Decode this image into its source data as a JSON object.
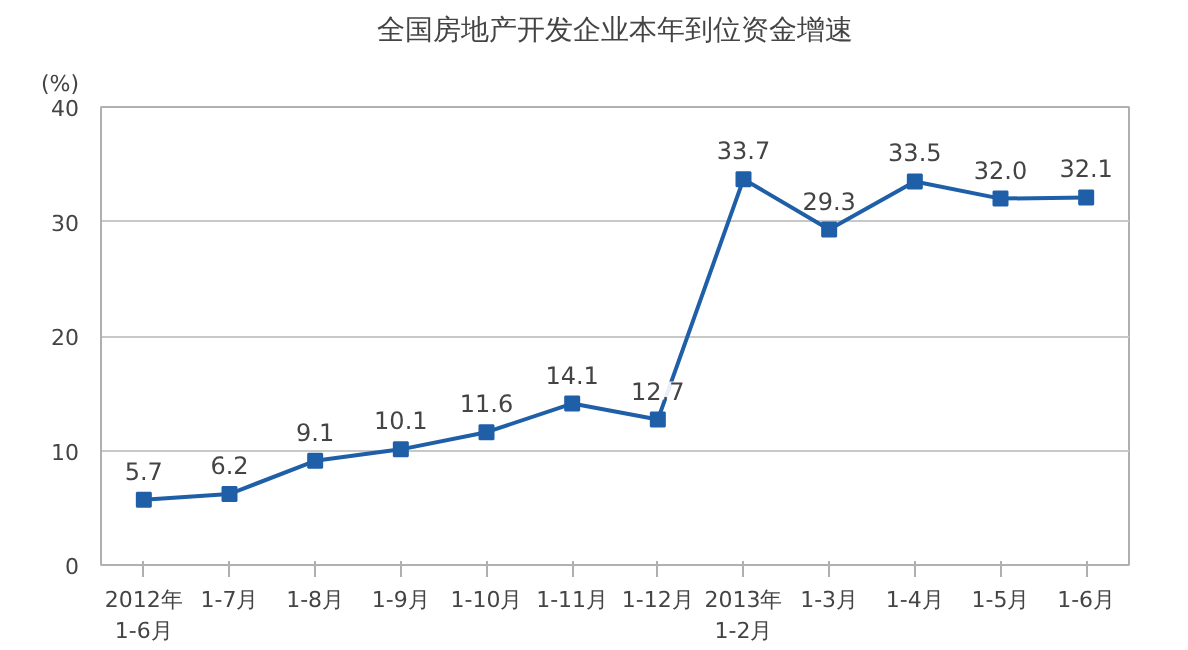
{
  "chart_data": {
    "type": "line",
    "title": "全国房地产开发企业本年到位资金增速",
    "ylabel": "(%)",
    "categories": [
      "2012年\n1-6月",
      "1-7月",
      "1-8月",
      "1-9月",
      "1-10月",
      "1-11月",
      "1-12月",
      "2013年\n1-2月",
      "1-3月",
      "1-4月",
      "1-5月",
      "1-6月"
    ],
    "series": [
      {
        "color": "#1f5fa8",
        "values": [
          5.7,
          6.2,
          9.1,
          10.1,
          11.6,
          14.1,
          12.7,
          33.7,
          29.3,
          33.5,
          32.0,
          32.1
        ],
        "value_labels": [
          "5.7",
          "6.2",
          "9.1",
          "10.1",
          "11.6",
          "14.1",
          "12.7",
          "33.7",
          "29.3",
          "33.5",
          "32.0",
          "32.1"
        ]
      }
    ],
    "ylim": [
      0,
      40
    ],
    "yticks": [
      0,
      10,
      20,
      30,
      40
    ],
    "grid": "y",
    "marker": "square",
    "line_style": "solid"
  }
}
